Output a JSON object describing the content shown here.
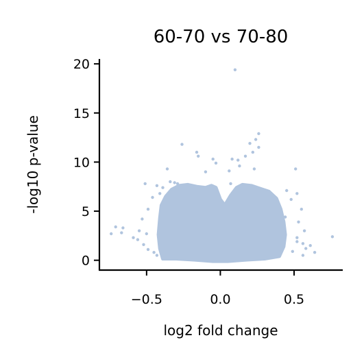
{
  "chart_data": {
    "type": "scatter",
    "title": "60-70 vs 70-80",
    "xlabel": "log2 fold change",
    "ylabel": "-log10 p-value",
    "xlim": [
      -0.82,
      0.83
    ],
    "ylim": [
      -1.0,
      20.5
    ],
    "xticks": [
      -0.5,
      0.0,
      0.5
    ],
    "xtick_labels": [
      "−0.5",
      "0.0",
      "0.5"
    ],
    "yticks": [
      0,
      5,
      10,
      15,
      20
    ],
    "ytick_labels": [
      "0",
      "5",
      "10",
      "15",
      "20"
    ],
    "grid": false,
    "legend": "none",
    "point_color": "#b0c4de",
    "series": [
      {
        "points": [
          [
            0.1,
            19.4
          ],
          [
            0.26,
            12.9
          ],
          [
            0.24,
            12.3
          ],
          [
            0.2,
            11.9
          ],
          [
            -0.26,
            11.8
          ],
          [
            0.26,
            11.5
          ],
          [
            0.22,
            11.0
          ],
          [
            -0.16,
            11.0
          ],
          [
            -0.15,
            10.6
          ],
          [
            0.17,
            10.6
          ],
          [
            0.08,
            10.3
          ],
          [
            -0.05,
            10.3
          ],
          [
            0.12,
            10.2
          ],
          [
            -0.03,
            9.9
          ],
          [
            0.13,
            9.6
          ],
          [
            -0.36,
            9.3
          ],
          [
            0.51,
            9.3
          ],
          [
            0.23,
            9.3
          ],
          [
            0.06,
            9.1
          ],
          [
            -0.1,
            9.0
          ],
          [
            -0.34,
            8.0
          ],
          [
            -0.31,
            7.9
          ],
          [
            -0.29,
            7.8
          ],
          [
            -0.51,
            7.8
          ],
          [
            -0.43,
            7.6
          ],
          [
            -0.39,
            7.4
          ],
          [
            -0.25,
            7.3
          ],
          [
            -0.2,
            7.2
          ],
          [
            0.07,
            7.8
          ],
          [
            0.19,
            7.6
          ],
          [
            0.45,
            7.1
          ],
          [
            0.52,
            6.8
          ],
          [
            0.48,
            6.2
          ],
          [
            0.55,
            5.2
          ],
          [
            -0.49,
            5.2
          ],
          [
            -0.46,
            6.4
          ],
          [
            -0.41,
            6.8
          ],
          [
            0.44,
            4.4
          ],
          [
            0.53,
            3.9
          ],
          [
            0.57,
            3.0
          ],
          [
            0.52,
            2.3
          ],
          [
            0.56,
            1.7
          ],
          [
            0.58,
            1.2
          ],
          [
            0.64,
            0.8
          ],
          [
            0.56,
            0.5
          ],
          [
            0.76,
            2.4
          ],
          [
            0.61,
            1.5
          ],
          [
            -0.53,
            4.2
          ],
          [
            -0.55,
            3.0
          ],
          [
            -0.59,
            2.3
          ],
          [
            -0.52,
            1.6
          ],
          [
            -0.49,
            1.1
          ],
          [
            -0.45,
            0.8
          ],
          [
            -0.43,
            0.5
          ],
          [
            -0.5,
            2.7
          ],
          [
            -0.66,
            3.3
          ],
          [
            -0.71,
            3.4
          ],
          [
            -0.67,
            2.8
          ],
          [
            -0.74,
            2.7
          ],
          [
            -0.56,
            2.1
          ],
          [
            0.52,
            1.9
          ],
          [
            0.49,
            0.9
          ]
        ]
      }
    ]
  }
}
